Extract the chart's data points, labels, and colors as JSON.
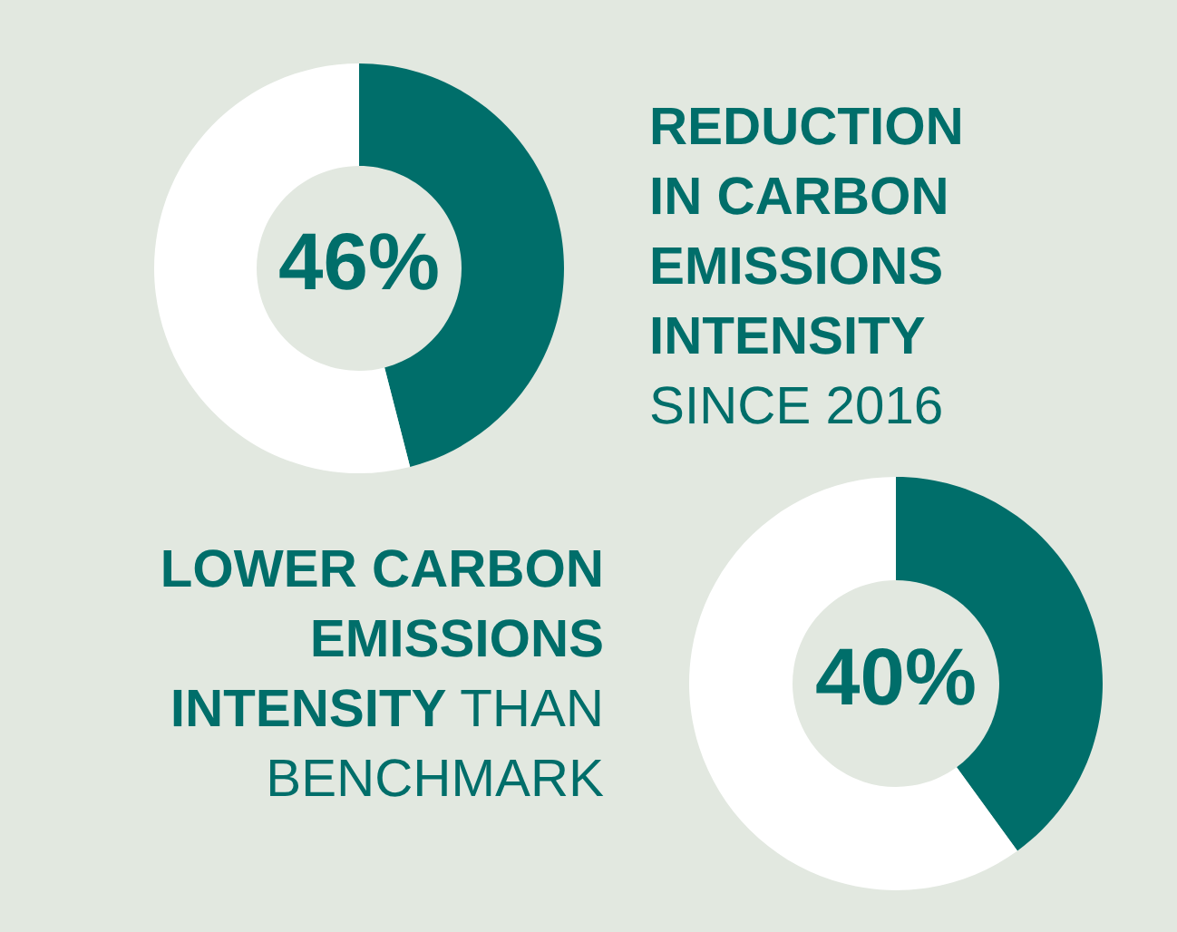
{
  "chart_data": [
    {
      "type": "donut",
      "categories": [
        null,
        null
      ],
      "values": [
        46,
        54
      ],
      "colors": [
        "#006e6a",
        "#ffffff"
      ],
      "value_labels": [
        "46%",
        null
      ],
      "annotations": [
        "REDUCTION\nIN CARBON\nEMISSIONS\nINTENSITY",
        "\nSINCE 2016"
      ]
    },
    {
      "type": "donut",
      "categories": [
        null,
        null
      ],
      "values": [
        40,
        60
      ],
      "colors": [
        "#006e6a",
        "#ffffff"
      ],
      "value_labels": [
        "40%",
        null
      ],
      "annotations": [
        "LOWER CARBON\nEMISSIONS\nINTENSITY",
        " THAN\nBENCHMARK"
      ]
    }
  ]
}
